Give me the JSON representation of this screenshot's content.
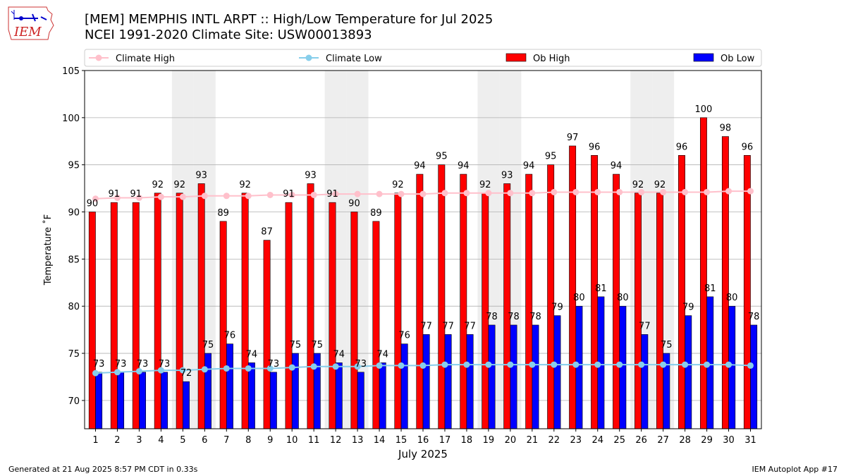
{
  "header": {
    "title_line1": "[MEM] MEMPHIS INTL ARPT :: High/Low Temperature for Jul 2025",
    "title_line2": "NCEI 1991-2020 Climate Site: USW00013893",
    "logo_text": "IEM"
  },
  "footer": {
    "left": "Generated at 21 Aug 2025 8:57 PM CDT in 0.33s",
    "right": "IEM Autoplot App #17"
  },
  "colors": {
    "ob_high": "#ff0000",
    "ob_low": "#0000ff",
    "climate_high": "#ffc0cb",
    "climate_low": "#87ceeb",
    "weekend_shade": "#eeeeee",
    "grid": "#b0b0b0"
  },
  "chart_data": {
    "type": "bar",
    "xlabel": "July 2025",
    "ylabel": "Temperature ˚F",
    "ylim": [
      67,
      105
    ],
    "yticks": [
      70,
      75,
      80,
      85,
      90,
      95,
      100,
      105
    ],
    "grid": "horizontal",
    "legend_placement": "top",
    "categories": [
      "1",
      "2",
      "3",
      "4",
      "5",
      "6",
      "7",
      "8",
      "9",
      "10",
      "11",
      "12",
      "13",
      "14",
      "15",
      "16",
      "17",
      "18",
      "19",
      "20",
      "21",
      "22",
      "23",
      "24",
      "25",
      "26",
      "27",
      "28",
      "29",
      "30",
      "31"
    ],
    "shaded_days": [
      5,
      6,
      12,
      13,
      19,
      20,
      26,
      27
    ],
    "series": [
      {
        "name": "Climate High",
        "kind": "line",
        "values": [
          91.4,
          91.5,
          91.5,
          91.6,
          91.6,
          91.7,
          91.7,
          91.7,
          91.8,
          91.8,
          91.8,
          91.9,
          91.9,
          91.9,
          91.9,
          91.9,
          92.0,
          92.0,
          92.0,
          92.0,
          92.0,
          92.1,
          92.1,
          92.1,
          92.1,
          92.1,
          92.1,
          92.1,
          92.1,
          92.2,
          92.2
        ]
      },
      {
        "name": "Climate Low",
        "kind": "line",
        "values": [
          72.9,
          73.0,
          73.1,
          73.2,
          73.2,
          73.3,
          73.4,
          73.4,
          73.4,
          73.5,
          73.6,
          73.6,
          73.6,
          73.7,
          73.7,
          73.7,
          73.8,
          73.8,
          73.8,
          73.8,
          73.8,
          73.8,
          73.8,
          73.8,
          73.8,
          73.8,
          73.8,
          73.8,
          73.8,
          73.8,
          73.7
        ]
      },
      {
        "name": "Ob High",
        "kind": "bar",
        "values": [
          90,
          91,
          91,
          92,
          92,
          93,
          89,
          92,
          87,
          91,
          93,
          91,
          90,
          89,
          92,
          94,
          95,
          94,
          92,
          93,
          94,
          95,
          97,
          96,
          94,
          92,
          92,
          96,
          100,
          98,
          96
        ]
      },
      {
        "name": "Ob Low",
        "kind": "bar",
        "values": [
          73,
          73,
          73,
          73,
          72,
          75,
          76,
          74,
          73,
          75,
          75,
          74,
          73,
          74,
          76,
          77,
          77,
          77,
          78,
          78,
          78,
          79,
          80,
          81,
          80,
          77,
          75,
          79,
          81,
          80,
          78
        ]
      }
    ]
  }
}
